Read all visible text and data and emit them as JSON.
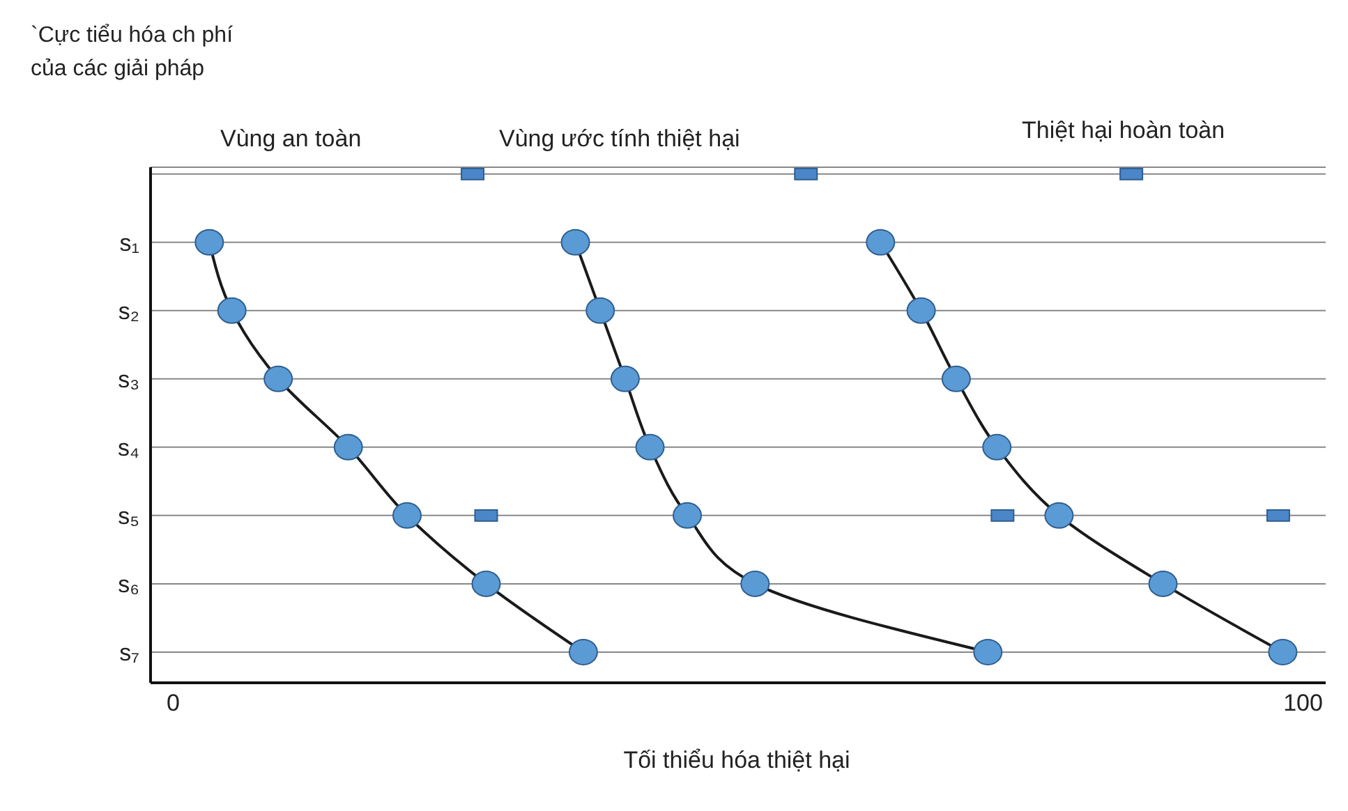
{
  "chart_data": {
    "type": "line",
    "orientation": "horizontal",
    "ylabel": "`Cực tiểu hóa ch phí\ncủa các giải pháp",
    "xlabel": "Tối thiểu hóa thiệt hại",
    "annotations": [
      "Vùng an toàn",
      "Vùng ước tính thiệt hại",
      "Thiệt hại hoàn toàn"
    ],
    "categories": [
      null,
      "s₁",
      "s₂",
      "s₃",
      "s₄",
      "s₅",
      "s₆",
      "s₇"
    ],
    "series": [
      {
        "type": "line",
        "color": "#1a1a1a",
        "marker": "circle",
        "values": [
          null,
          3.2,
          5.2,
          9.3,
          15.5,
          20.7,
          27.7,
          36.3
        ]
      },
      {
        "type": "line",
        "color": "#1a1a1a",
        "marker": "circle",
        "values": [
          null,
          35.6,
          37.8,
          40,
          42.2,
          45.5,
          51.5,
          72.1
        ]
      },
      {
        "type": "line",
        "color": "#1a1a1a",
        "marker": "circle",
        "values": [
          null,
          62.6,
          66.2,
          69.3,
          72.9,
          78.4,
          87.6,
          98.2
        ]
      },
      {
        "type": "scatter",
        "color": "#4a86c8",
        "marker": "square",
        "values": [
          26.5,
          null,
          null,
          null,
          null,
          27.7,
          null,
          null
        ]
      },
      {
        "type": "scatter",
        "color": "#4a86c8",
        "marker": "square",
        "values": [
          56,
          null,
          null,
          null,
          null,
          73.4,
          null,
          null
        ]
      },
      {
        "type": "scatter",
        "color": "#4a86c8",
        "marker": "square",
        "values": [
          84.8,
          null,
          null,
          null,
          null,
          97.8,
          null,
          null
        ]
      }
    ],
    "xlim": [
      -2,
      102
    ],
    "xticks": [
      0,
      100
    ],
    "grid": "y"
  }
}
